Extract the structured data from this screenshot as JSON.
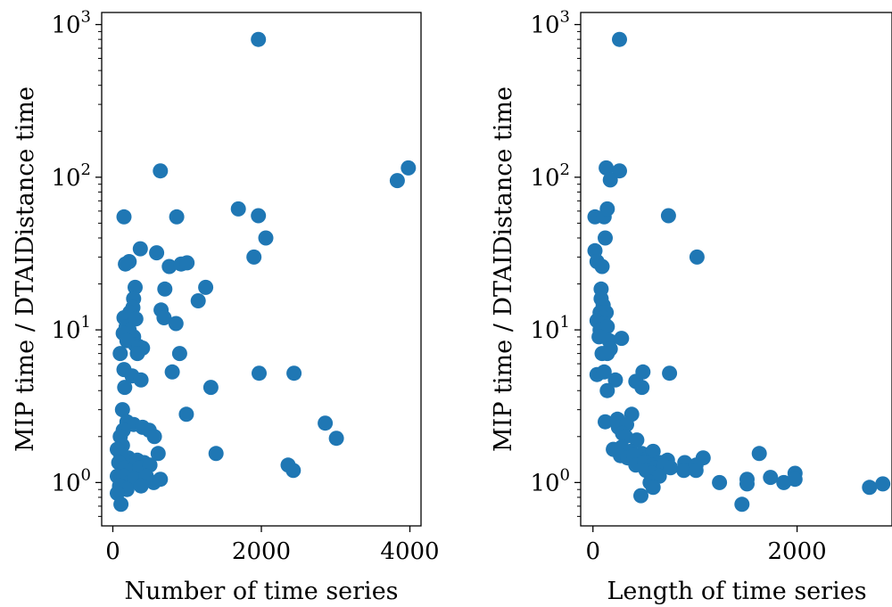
{
  "chart_data": [
    {
      "type": "scatter",
      "xlabel": "Number of time series",
      "ylabel": "MIP time / DTAIDistance time",
      "xticks": [
        "0",
        "2000",
        "4000"
      ],
      "xlim": [
        -150,
        4150
      ],
      "ylim": [
        0.52,
        1200
      ],
      "y_scale": "log",
      "yticks": [
        {
          "base": "10",
          "exp": "0"
        },
        {
          "base": "10",
          "exp": "1"
        },
        {
          "base": "10",
          "exp": "2"
        },
        {
          "base": "10",
          "exp": "3"
        }
      ],
      "grid": false,
      "color": "#1f77b4",
      "points": [
        [
          1960,
          800
        ],
        [
          3980,
          115
        ],
        [
          3830,
          95
        ],
        [
          640,
          110
        ],
        [
          150,
          55
        ],
        [
          860,
          55
        ],
        [
          1690,
          62
        ],
        [
          1960,
          56
        ],
        [
          2060,
          40
        ],
        [
          1900,
          30
        ],
        [
          370,
          34
        ],
        [
          590,
          32
        ],
        [
          220,
          28
        ],
        [
          170,
          27
        ],
        [
          760,
          26
        ],
        [
          920,
          27
        ],
        [
          1000,
          27.5
        ],
        [
          300,
          19
        ],
        [
          700,
          18.5
        ],
        [
          1250,
          19
        ],
        [
          280,
          16
        ],
        [
          1150,
          15.5
        ],
        [
          650,
          13.5
        ],
        [
          270,
          14
        ],
        [
          230,
          13
        ],
        [
          690,
          12
        ],
        [
          150,
          12
        ],
        [
          310,
          11.8
        ],
        [
          850,
          11
        ],
        [
          180,
          10.5
        ],
        [
          220,
          10
        ],
        [
          140,
          9.5
        ],
        [
          280,
          9
        ],
        [
          300,
          8
        ],
        [
          190,
          8.5
        ],
        [
          350,
          7.8
        ],
        [
          400,
          7.6
        ],
        [
          100,
          7
        ],
        [
          330,
          7
        ],
        [
          900,
          7
        ],
        [
          150,
          5.5
        ],
        [
          260,
          5
        ],
        [
          800,
          5.3
        ],
        [
          1970,
          5.2
        ],
        [
          2440,
          5.2
        ],
        [
          380,
          4.7
        ],
        [
          160,
          4.2
        ],
        [
          1320,
          4.2
        ],
        [
          130,
          3
        ],
        [
          990,
          2.8
        ],
        [
          190,
          2.5
        ],
        [
          280,
          2.4
        ],
        [
          400,
          2.3
        ],
        [
          490,
          2.2
        ],
        [
          2860,
          2.45
        ],
        [
          140,
          2.2
        ],
        [
          100,
          2
        ],
        [
          560,
          2
        ],
        [
          3010,
          1.95
        ],
        [
          130,
          1.75
        ],
        [
          60,
          1.65
        ],
        [
          110,
          1.5
        ],
        [
          210,
          1.45
        ],
        [
          280,
          1.35
        ],
        [
          330,
          1.4
        ],
        [
          420,
          1.35
        ],
        [
          610,
          1.55
        ],
        [
          1390,
          1.55
        ],
        [
          80,
          1.35
        ],
        [
          160,
          1.25
        ],
        [
          250,
          1.2
        ],
        [
          360,
          1.25
        ],
        [
          500,
          1.3
        ],
        [
          60,
          1.1
        ],
        [
          150,
          1.1
        ],
        [
          230,
          1.0
        ],
        [
          290,
          1.05
        ],
        [
          400,
          1.0
        ],
        [
          450,
          1.1
        ],
        [
          550,
          1.0
        ],
        [
          640,
          1.05
        ],
        [
          2360,
          1.3
        ],
        [
          2430,
          1.2
        ],
        [
          90,
          0.95
        ],
        [
          190,
          0.9
        ],
        [
          380,
          0.95
        ],
        [
          60,
          0.85
        ],
        [
          110,
          0.72
        ]
      ]
    },
    {
      "type": "scatter",
      "xlabel": "Length of time series",
      "ylabel": "MIP time / DTAIDistance time",
      "xticks": [
        "0",
        "2000"
      ],
      "xlim": [
        -120,
        2930
      ],
      "ylim": [
        0.52,
        1200
      ],
      "y_scale": "log",
      "yticks": [
        {
          "base": "10",
          "exp": "0"
        },
        {
          "base": "10",
          "exp": "1"
        },
        {
          "base": "10",
          "exp": "2"
        },
        {
          "base": "10",
          "exp": "3"
        }
      ],
      "grid": false,
      "color": "#1f77b4",
      "points": [
        [
          260,
          800
        ],
        [
          130,
          115
        ],
        [
          260,
          110
        ],
        [
          170,
          96
        ],
        [
          740,
          56
        ],
        [
          20,
          55
        ],
        [
          110,
          55
        ],
        [
          140,
          62
        ],
        [
          120,
          40
        ],
        [
          20,
          33
        ],
        [
          1020,
          30
        ],
        [
          40,
          28
        ],
        [
          90,
          26
        ],
        [
          80,
          18.5
        ],
        [
          80,
          16
        ],
        [
          100,
          14.5
        ],
        [
          70,
          13
        ],
        [
          130,
          13
        ],
        [
          100,
          12
        ],
        [
          40,
          11.5
        ],
        [
          110,
          11
        ],
        [
          70,
          10
        ],
        [
          140,
          10.5
        ],
        [
          60,
          9
        ],
        [
          160,
          8.5
        ],
        [
          280,
          8.8
        ],
        [
          170,
          7.5
        ],
        [
          90,
          7
        ],
        [
          140,
          7
        ],
        [
          40,
          5.1
        ],
        [
          110,
          5.3
        ],
        [
          220,
          4.7
        ],
        [
          420,
          4.6
        ],
        [
          490,
          5.3
        ],
        [
          750,
          5.2
        ],
        [
          480,
          4.2
        ],
        [
          140,
          4.0
        ],
        [
          120,
          2.5
        ],
        [
          240,
          2.6
        ],
        [
          380,
          2.8
        ],
        [
          250,
          2.3
        ],
        [
          330,
          2.4
        ],
        [
          290,
          2.1
        ],
        [
          320,
          2.0
        ],
        [
          430,
          1.9
        ],
        [
          200,
          1.65
        ],
        [
          280,
          1.7
        ],
        [
          370,
          1.6
        ],
        [
          480,
          1.55
        ],
        [
          560,
          1.5
        ],
        [
          590,
          1.6
        ],
        [
          1630,
          1.55
        ],
        [
          270,
          1.5
        ],
        [
          340,
          1.45
        ],
        [
          400,
          1.5
        ],
        [
          500,
          1.4
        ],
        [
          660,
          1.35
        ],
        [
          730,
          1.4
        ],
        [
          900,
          1.35
        ],
        [
          1080,
          1.45
        ],
        [
          420,
          1.3
        ],
        [
          510,
          1.35
        ],
        [
          580,
          1.3
        ],
        [
          610,
          1.25
        ],
        [
          700,
          1.3
        ],
        [
          760,
          1.25
        ],
        [
          890,
          1.2
        ],
        [
          1010,
          1.3
        ],
        [
          520,
          1.2
        ],
        [
          580,
          1.15
        ],
        [
          650,
          1.1
        ],
        [
          1010,
          1.2
        ],
        [
          1980,
          1.15
        ],
        [
          1980,
          1.05
        ],
        [
          1510,
          1.05
        ],
        [
          1510,
          0.98
        ],
        [
          1740,
          1.08
        ],
        [
          1870,
          1.0
        ],
        [
          1240,
          1.0
        ],
        [
          560,
          1.0
        ],
        [
          590,
          0.93
        ],
        [
          470,
          0.82
        ],
        [
          2710,
          0.93
        ],
        [
          2840,
          0.98
        ],
        [
          1460,
          0.72
        ]
      ]
    }
  ]
}
